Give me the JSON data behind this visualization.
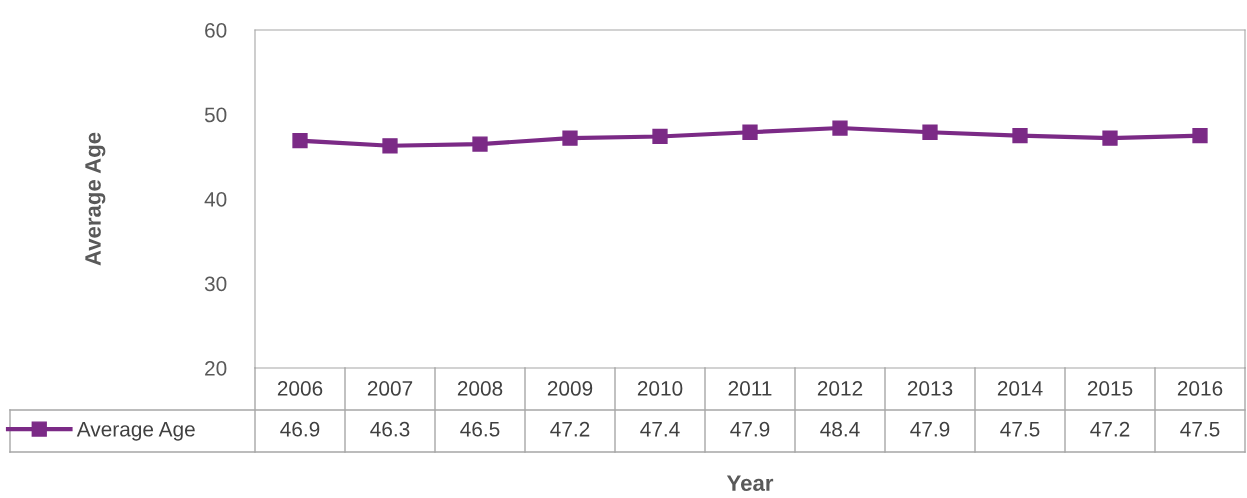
{
  "chart_data": {
    "type": "line",
    "xlabel": "Year",
    "ylabel": "Average Age",
    "categories": [
      "2006",
      "2007",
      "2008",
      "2009",
      "2010",
      "2011",
      "2012",
      "2013",
      "2014",
      "2015",
      "2016"
    ],
    "series": [
      {
        "name": "Average Age",
        "color": "#7b2a86",
        "values": [
          46.9,
          46.3,
          46.5,
          47.2,
          47.4,
          47.9,
          48.4,
          47.9,
          47.5,
          47.2,
          47.5
        ]
      }
    ],
    "ylim": [
      20,
      60
    ],
    "yticks": [
      20,
      30,
      40,
      50,
      60
    ],
    "grid": false,
    "legend": "bottom",
    "marker": "square",
    "line_style": "solid",
    "data_labels": true
  }
}
